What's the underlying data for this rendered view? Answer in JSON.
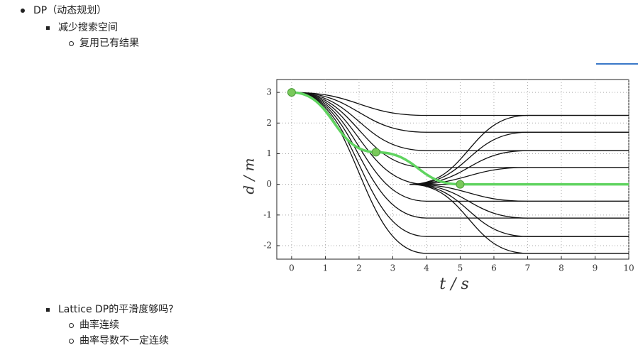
{
  "outline": [
    "DP（动态规划）",
    "减少搜索空间",
    "复用已有结果",
    "Lattice DP的平滑度够吗?",
    "曲率连续",
    "曲率导数不一定连续"
  ],
  "chart_data": {
    "type": "line",
    "xlabel": "t / s",
    "ylabel": "d / m",
    "xlim": [
      -0.44,
      10
    ],
    "ylim": [
      -2.44,
      3.42
    ],
    "xticks": [
      0,
      1,
      2,
      3,
      4,
      5,
      6,
      7,
      8,
      9,
      10
    ],
    "yticks": [
      -2,
      -1,
      0,
      1,
      2,
      3
    ],
    "grid": true,
    "series": [
      {
        "color": "#111111",
        "x": [
          0,
          4,
          10
        ],
        "values": [
          3,
          2.25,
          2.25
        ]
      },
      {
        "color": "#111111",
        "x": [
          0,
          4,
          10
        ],
        "values": [
          3,
          1.7,
          1.7
        ]
      },
      {
        "color": "#111111",
        "x": [
          0,
          4,
          10
        ],
        "values": [
          3,
          1.1,
          1.1
        ]
      },
      {
        "color": "#111111",
        "x": [
          0,
          4,
          10
        ],
        "values": [
          3,
          0.55,
          0.55
        ]
      },
      {
        "color": "#111111",
        "x": [
          0,
          4,
          10
        ],
        "values": [
          3,
          0,
          0
        ]
      },
      {
        "color": "#111111",
        "x": [
          0,
          4,
          10
        ],
        "values": [
          3,
          -0.55,
          -0.55
        ]
      },
      {
        "color": "#111111",
        "x": [
          0,
          4,
          10
        ],
        "values": [
          3,
          -1.1,
          -1.1
        ]
      },
      {
        "color": "#111111",
        "x": [
          0,
          4,
          10
        ],
        "values": [
          3,
          -1.7,
          -1.7
        ]
      },
      {
        "color": "#111111",
        "x": [
          0,
          4,
          10
        ],
        "values": [
          3,
          -2.25,
          -2.25
        ]
      },
      {
        "color": "#111111",
        "x": [
          3.5,
          7,
          10
        ],
        "values": [
          0,
          2.25,
          2.25
        ]
      },
      {
        "color": "#111111",
        "x": [
          3.5,
          7,
          10
        ],
        "values": [
          0,
          1.7,
          1.7
        ]
      },
      {
        "color": "#111111",
        "x": [
          3.5,
          7,
          10
        ],
        "values": [
          0,
          1.1,
          1.1
        ]
      },
      {
        "color": "#111111",
        "x": [
          3.5,
          7,
          10
        ],
        "values": [
          0,
          0.55,
          0.55
        ]
      },
      {
        "color": "#111111",
        "x": [
          3.5,
          7,
          10
        ],
        "values": [
          0,
          -0.55,
          -0.55
        ]
      },
      {
        "color": "#111111",
        "x": [
          3.5,
          7,
          10
        ],
        "values": [
          0,
          -1.1,
          -1.1
        ]
      },
      {
        "color": "#111111",
        "x": [
          3.5,
          7,
          10
        ],
        "values": [
          0,
          -1.7,
          -1.7
        ]
      },
      {
        "color": "#111111",
        "x": [
          3.5,
          7,
          10
        ],
        "values": [
          0,
          -2.25,
          -2.25
        ]
      },
      {
        "color": "#5fd35f",
        "x": [
          0,
          2.5,
          5,
          10
        ],
        "values": [
          3,
          1.05,
          0,
          0
        ]
      }
    ],
    "points": {
      "color": "#79c95a",
      "x": [
        0,
        2.5,
        5
      ],
      "values": [
        3,
        1.05,
        0
      ]
    }
  }
}
